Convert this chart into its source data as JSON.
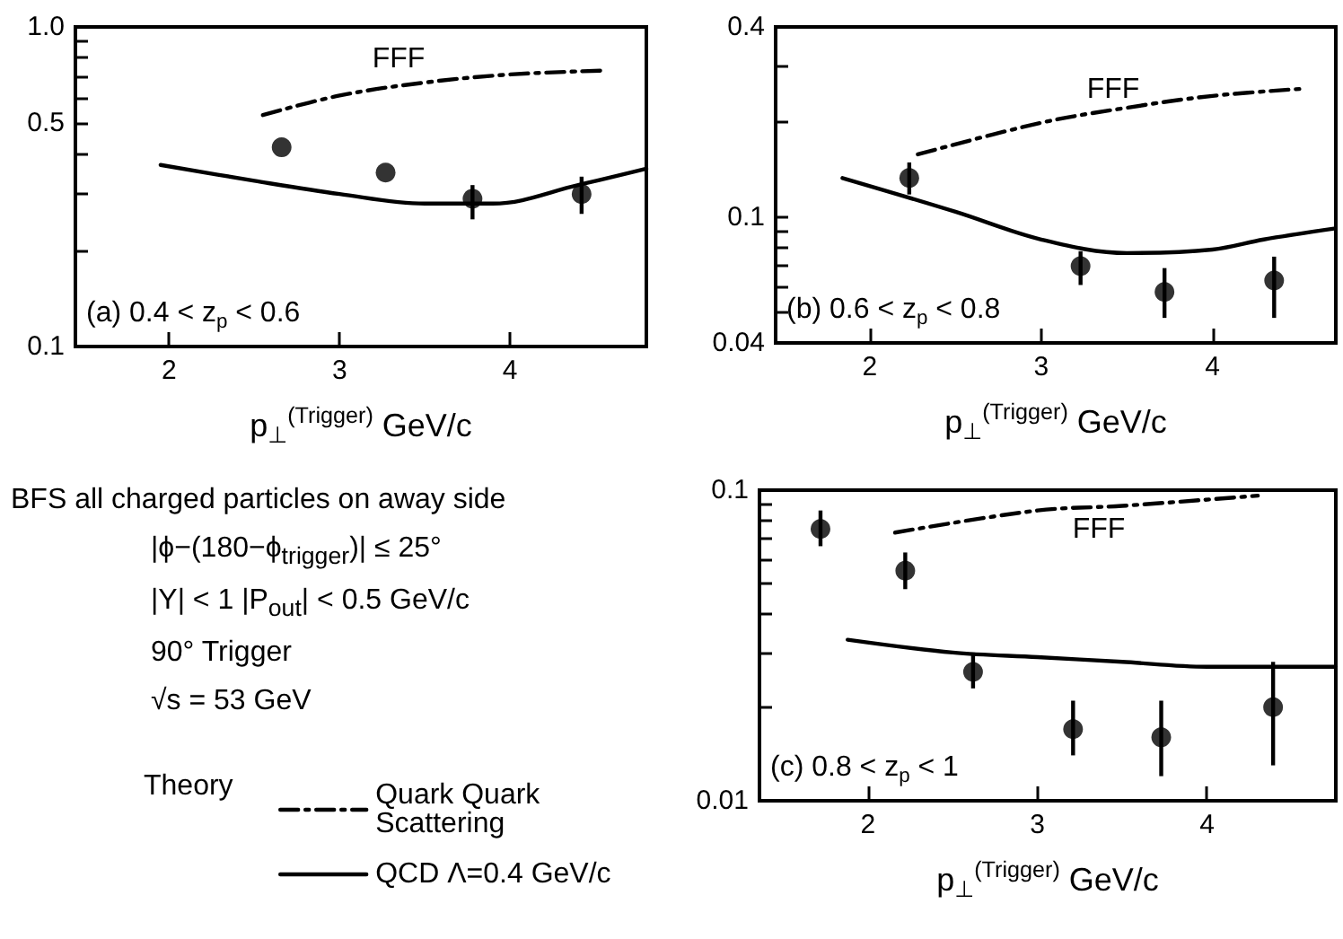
{
  "chart_data": [
    {
      "type": "scatter",
      "xlabel": "p$_{⊥}$$^{(Trigger)}$ GeV/c",
      "log": "y",
      "xlim": [
        1.45,
        4.8
      ],
      "xticks": [
        2,
        3,
        4
      ],
      "ylim": [
        0.1,
        1.0
      ],
      "yticks": [
        {
          "value": 0.1,
          "label": "0.1"
        },
        {
          "value": 0.2,
          "label": null
        },
        {
          "value": 0.3,
          "label": null
        },
        {
          "value": 0.4,
          "label": null
        },
        0.5,
        {
          "value": 0.6,
          "label": null
        },
        {
          "value": 0.7,
          "label": null
        },
        {
          "value": 0.8,
          "label": null
        },
        {
          "value": 0.9,
          "label": null
        },
        {
          "value": 1.0,
          "label": "1.0"
        }
      ],
      "series": [
        {
          "marker": "circle",
          "color": "#000000",
          "x": [
            2.66,
            3.27,
            3.78,
            4.42
          ],
          "values": [
            0.42,
            0.35,
            0.29,
            0.3
          ],
          "errors": [
            null,
            null,
            [
              0.25,
              0.32
            ],
            [
              0.26,
              0.34
            ]
          ]
        },
        {
          "type": "line",
          "marker": "none",
          "line_style": "dashed",
          "color": "#000000",
          "x": [
            2.55,
            3.0,
            3.5,
            4.0,
            4.55
          ],
          "values": [
            0.53,
            0.61,
            0.67,
            0.71,
            0.73
          ]
        },
        {
          "type": "line",
          "marker": "none",
          "line_style": "solid",
          "color": "#000000",
          "x": [
            1.95,
            2.5,
            3.0,
            3.5,
            3.9,
            4.4,
            4.8
          ],
          "values": [
            0.37,
            0.33,
            0.3,
            0.28,
            0.28,
            0.32,
            0.36
          ]
        }
      ],
      "annotations": [
        "FFF",
        "(a) 0.4 < z$_{p}$ < 0.6"
      ]
    },
    {
      "type": "scatter",
      "xlabel": "p$_{⊥}$$^{(Trigger)}$ GeV/c",
      "log": "y",
      "xlim": [
        1.45,
        4.72
      ],
      "xticks": [
        2,
        3,
        4
      ],
      "ylim": [
        0.04,
        0.4
      ],
      "yticks": [
        {
          "value": 0.04,
          "label": "0.04"
        },
        {
          "value": 0.05,
          "label": null
        },
        {
          "value": 0.06,
          "label": null
        },
        {
          "value": 0.07,
          "label": null
        },
        {
          "value": 0.08,
          "label": null
        },
        {
          "value": 0.09,
          "label": null
        },
        0.1,
        {
          "value": 0.2,
          "label": null
        },
        {
          "value": 0.3,
          "label": null
        },
        0.4
      ],
      "series": [
        {
          "marker": "circle",
          "color": "#000000",
          "x": [
            2.23,
            3.23,
            3.72,
            4.36
          ],
          "values": [
            0.133,
            0.07,
            0.058,
            0.063
          ],
          "errors": [
            [
              0.118,
              0.149
            ],
            [
              0.061,
              0.078
            ],
            [
              0.048,
              0.069
            ],
            [
              0.048,
              0.075
            ]
          ]
        },
        {
          "type": "line",
          "marker": "none",
          "line_style": "dashed",
          "color": "#000000",
          "x": [
            2.28,
            3.0,
            3.5,
            4.0,
            4.53
          ],
          "values": [
            0.158,
            0.199,
            0.222,
            0.242,
            0.255
          ]
        },
        {
          "type": "line",
          "marker": "none",
          "line_style": "solid",
          "color": "#000000",
          "x": [
            1.84,
            2.5,
            3.0,
            3.5,
            4.0,
            4.3,
            4.71
          ],
          "values": [
            0.133,
            0.104,
            0.085,
            0.077,
            0.079,
            0.085,
            0.092
          ]
        }
      ],
      "annotations": [
        "FFF",
        "(b) 0.6 < z$_{p}$ < 0.8"
      ]
    },
    {
      "type": "other",
      "annotations": [
        "BFS all charged particles on away side",
        "|ϕ−(180−ϕ$_{trigger}$)| ≤ 25°",
        "|Y| < 1   |P$_{out}$| < 0.5 GeV/c",
        "90° Trigger",
        "√s = 53 GeV"
      ]
    },
    {
      "type": "scatter",
      "xlabel": "p$_{⊥}$$^{(Trigger)}$ GeV/c",
      "log": "y",
      "legend": "left",
      "legend_title": "Theory",
      "xlim": [
        1.36,
        4.76
      ],
      "xticks": [
        2,
        3,
        4
      ],
      "ylim": [
        0.01,
        0.1
      ],
      "yticks": [
        0.01,
        {
          "value": 0.02,
          "label": null
        },
        {
          "value": 0.03,
          "label": null
        },
        {
          "value": 0.04,
          "label": null
        },
        {
          "value": 0.05,
          "label": null
        },
        {
          "value": 0.06,
          "label": null
        },
        {
          "value": 0.07,
          "label": null
        },
        {
          "value": 0.08,
          "label": null
        },
        {
          "value": 0.09,
          "label": null
        },
        0.1
      ],
      "series": [
        {
          "marker": "circle",
          "color": "#000000",
          "x": [
            1.72,
            2.22,
            2.62,
            3.21,
            3.73,
            4.39
          ],
          "values": [
            0.075,
            0.055,
            0.026,
            0.017,
            0.016,
            0.02
          ],
          "errors": [
            [
              0.066,
              0.086
            ],
            [
              0.048,
              0.063
            ],
            [
              0.023,
              0.03
            ],
            [
              0.014,
              0.021
            ],
            [
              0.012,
              0.021
            ],
            [
              0.013,
              0.028
            ]
          ]
        },
        {
          "type": "line",
          "name": "Quark Quark Scattering",
          "marker": "none",
          "line_style": "dashed",
          "color": "#000000",
          "x": [
            2.16,
            3.0,
            3.5,
            4.3
          ],
          "values": [
            0.073,
            0.086,
            0.089,
            0.096
          ]
        },
        {
          "type": "line",
          "name": "QCD Λ=0.4 GeV/c",
          "marker": "none",
          "line_style": "solid",
          "color": "#000000",
          "x": [
            1.88,
            2.5,
            3.0,
            3.5,
            4.0,
            4.76
          ],
          "values": [
            0.033,
            0.03,
            0.029,
            0.028,
            0.027,
            0.027
          ]
        }
      ],
      "annotations": [
        "FFF",
        "(c) 0.8 < z$_{p}$ < 1"
      ]
    }
  ]
}
